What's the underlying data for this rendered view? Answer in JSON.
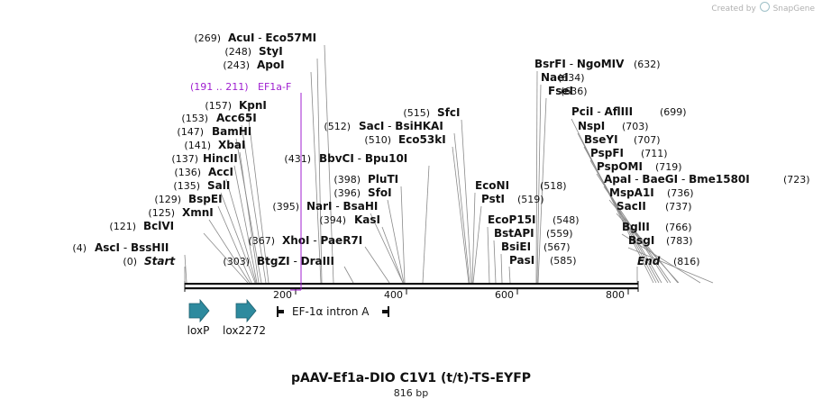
{
  "credit": {
    "text": "Created by",
    "brand": "SnapGene"
  },
  "title": "pAAV-Ef1a-DIO C1V1 (t/t)-TS-EYFP",
  "subtitle": "816 bp",
  "ruler": {
    "ticks": [
      "200",
      "400",
      "600",
      "800"
    ]
  },
  "enzymes": [
    {
      "pos": "(269)",
      "names": [
        "AcuI",
        "Eco57MI"
      ]
    },
    {
      "pos": "(248)",
      "names": [
        "StyI"
      ]
    },
    {
      "pos": "(243)",
      "names": [
        "ApoI"
      ]
    },
    {
      "pos": "(157)",
      "names": [
        "KpnI"
      ]
    },
    {
      "pos": "(153)",
      "names": [
        "Acc65I"
      ]
    },
    {
      "pos": "(147)",
      "names": [
        "BamHI"
      ]
    },
    {
      "pos": "(141)",
      "names": [
        "XbaI"
      ]
    },
    {
      "pos": "(137)",
      "names": [
        "HincII"
      ]
    },
    {
      "pos": "(136)",
      "names": [
        "AccI"
      ]
    },
    {
      "pos": "(135)",
      "names": [
        "SalI"
      ]
    },
    {
      "pos": "(129)",
      "names": [
        "BspEI"
      ]
    },
    {
      "pos": "(125)",
      "names": [
        "XmnI"
      ]
    },
    {
      "pos": "(121)",
      "names": [
        "BclVI"
      ]
    },
    {
      "pos": "(4)",
      "names": [
        "AscI",
        "BssHII"
      ]
    },
    {
      "pos": "(0)",
      "names": [
        "Start"
      ],
      "italic": true
    },
    {
      "pos": "(303)",
      "names": [
        "BtgZI",
        "DraIII"
      ]
    },
    {
      "pos": "(367)",
      "names": [
        "XhoI",
        "PaeR7I"
      ]
    },
    {
      "pos": "(395)",
      "names": [
        "NarI",
        "BsaHI"
      ]
    },
    {
      "pos": "(394)",
      "names": [
        "KasI"
      ]
    },
    {
      "pos": "(396)",
      "names": [
        "SfoI"
      ]
    },
    {
      "pos": "(398)",
      "names": [
        "PluTI"
      ]
    },
    {
      "pos": "(431)",
      "names": [
        "BbvCI",
        "Bpu10I"
      ]
    },
    {
      "pos": "(510)",
      "names": [
        "Eco53kI"
      ]
    },
    {
      "pos": "(512)",
      "names": [
        "SacI",
        "BsiHKAI"
      ]
    },
    {
      "pos": "(515)",
      "names": [
        "SfcI"
      ]
    },
    {
      "pos": "(518)",
      "names": [
        "EcoNI"
      ]
    },
    {
      "pos": "(519)",
      "names": [
        "PstI"
      ]
    },
    {
      "pos": "(548)",
      "names": [
        "EcoP15I"
      ]
    },
    {
      "pos": "(559)",
      "names": [
        "BstAPI"
      ]
    },
    {
      "pos": "(567)",
      "names": [
        "BsiEI"
      ]
    },
    {
      "pos": "(585)",
      "names": [
        "PasI"
      ]
    },
    {
      "pos": "(632)",
      "names": [
        "BsrFI",
        "NgoMIV"
      ]
    },
    {
      "pos": "(634)",
      "names": [
        "NaeI"
      ]
    },
    {
      "pos": "(636)",
      "names": [
        "FseI"
      ]
    },
    {
      "pos": "(699)",
      "names": [
        "PciI",
        "AflIII"
      ]
    },
    {
      "pos": "(703)",
      "names": [
        "NspI"
      ]
    },
    {
      "pos": "(707)",
      "names": [
        "BseYI"
      ]
    },
    {
      "pos": "(711)",
      "names": [
        "PspFI"
      ]
    },
    {
      "pos": "(719)",
      "names": [
        "PspOMI"
      ]
    },
    {
      "pos": "(723)",
      "names": [
        "ApaI",
        "BaeGI",
        "Bme1580I"
      ]
    },
    {
      "pos": "(736)",
      "names": [
        "MspA1I"
      ]
    },
    {
      "pos": "(737)",
      "names": [
        "SacII"
      ]
    },
    {
      "pos": "(766)",
      "names": [
        "BglII"
      ]
    },
    {
      "pos": "(783)",
      "names": [
        "BsgI"
      ]
    },
    {
      "pos": "(816)",
      "names": [
        "End"
      ],
      "italic": true
    }
  ],
  "primer": {
    "range": "(191 .. 211)",
    "name": "EF1a-F",
    "color": "#a020d0"
  },
  "features": [
    {
      "name": "loxP",
      "color": "#2e8a9e"
    },
    {
      "name": "lox2272",
      "color": "#2e8a9e"
    },
    {
      "name": "EF-1α intron A"
    }
  ]
}
